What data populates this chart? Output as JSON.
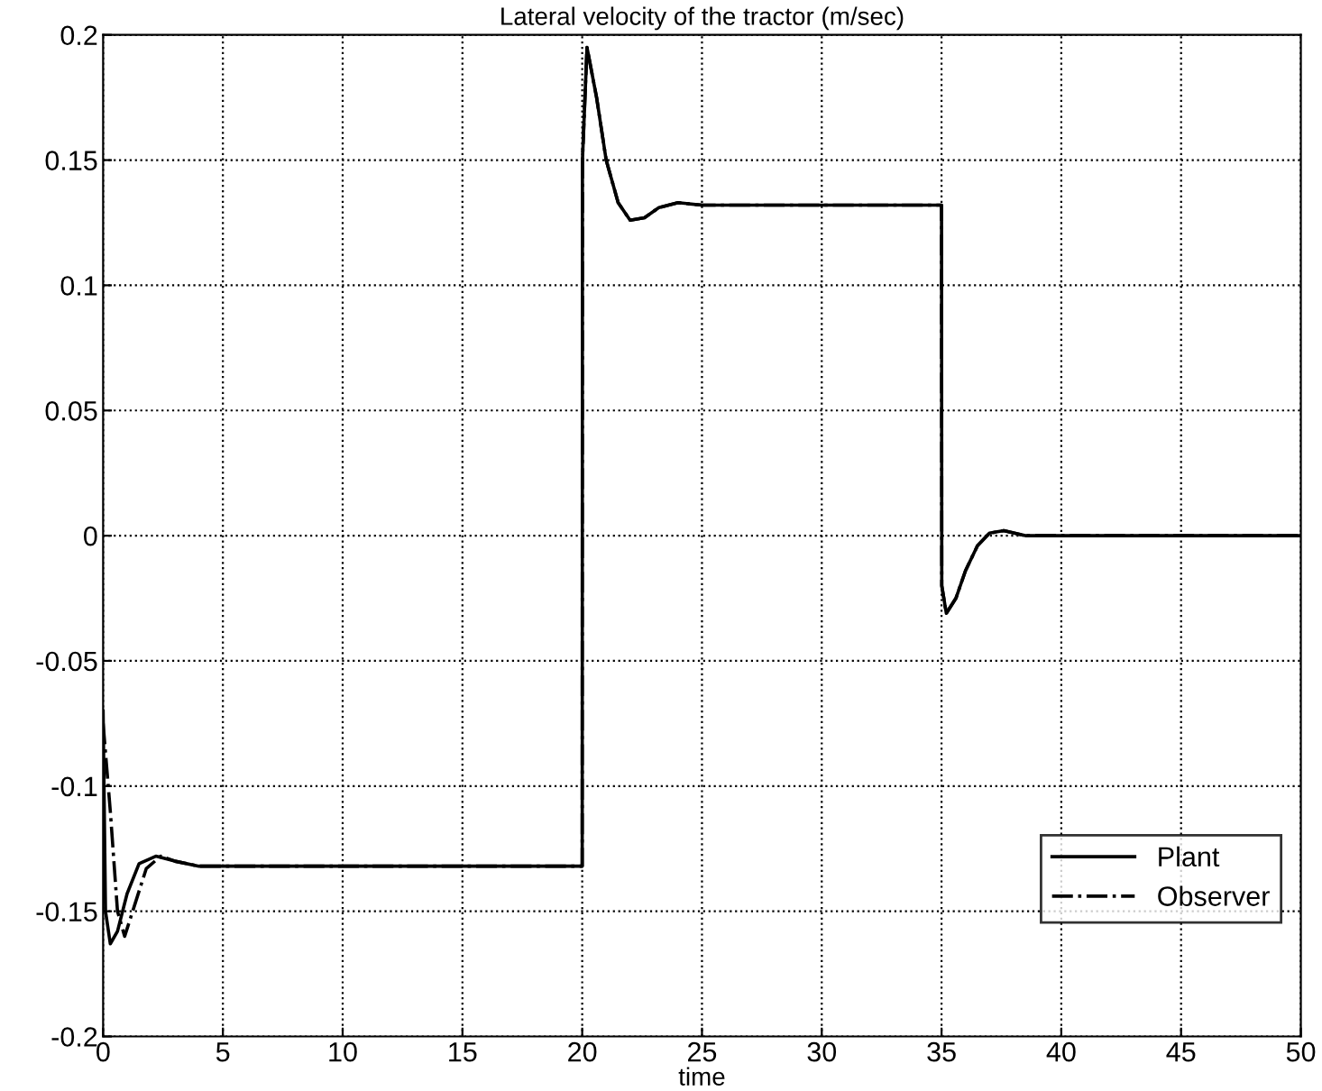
{
  "chart_data": {
    "type": "line",
    "title": "Lateral velocity of the tractor (m/sec)",
    "xlabel": "time",
    "xlim": [
      0,
      50
    ],
    "ylim": [
      -0.2,
      0.2
    ],
    "xticks": [
      0,
      5,
      10,
      15,
      20,
      25,
      30,
      35,
      40,
      45,
      50
    ],
    "yticks": [
      -0.2,
      -0.15,
      -0.1,
      -0.05,
      0,
      0.05,
      0.1,
      0.15,
      0.2
    ],
    "grid": true,
    "legend": "bottom right",
    "series": [
      {
        "name": "Plant",
        "color": "#000000",
        "line_style": "solid",
        "x": [
          0,
          0.1,
          0.3,
          0.6,
          1,
          1.5,
          2.2,
          3,
          4,
          10,
          20,
          20.01,
          20.2,
          20.6,
          21,
          21.5,
          22,
          22.6,
          23.2,
          24,
          25,
          30,
          35,
          35.01,
          35.2,
          35.6,
          36,
          36.5,
          37,
          37.6,
          38.5,
          40,
          50
        ],
        "values": [
          -0.07,
          -0.15,
          -0.163,
          -0.158,
          -0.143,
          -0.131,
          -0.128,
          -0.13,
          -0.132,
          -0.132,
          -0.132,
          0.15,
          0.195,
          0.175,
          0.15,
          0.133,
          0.126,
          0.127,
          0.131,
          0.133,
          0.132,
          0.132,
          0.132,
          -0.02,
          -0.031,
          -0.025,
          -0.014,
          -0.004,
          0.001,
          0.002,
          0,
          0,
          0
        ]
      },
      {
        "name": "Observer",
        "color": "#000000",
        "line_style": "dashed",
        "x": [
          0,
          0.3,
          0.6,
          0.9,
          1.3,
          1.8,
          2.4,
          3,
          4,
          10,
          20,
          20.01,
          20.2,
          20.6,
          21,
          21.5,
          22,
          22.6,
          23.2,
          24,
          25,
          30,
          35,
          35.01,
          35.2,
          35.6,
          36,
          36.5,
          37,
          37.6,
          38.5,
          40,
          50
        ],
        "values": [
          -0.075,
          -0.11,
          -0.15,
          -0.16,
          -0.148,
          -0.133,
          -0.128,
          -0.13,
          -0.132,
          -0.132,
          -0.132,
          0.15,
          0.195,
          0.175,
          0.15,
          0.133,
          0.126,
          0.127,
          0.131,
          0.133,
          0.132,
          0.132,
          0.132,
          -0.02,
          -0.031,
          -0.025,
          -0.014,
          -0.004,
          0.001,
          0.002,
          0,
          0,
          0
        ]
      }
    ]
  }
}
